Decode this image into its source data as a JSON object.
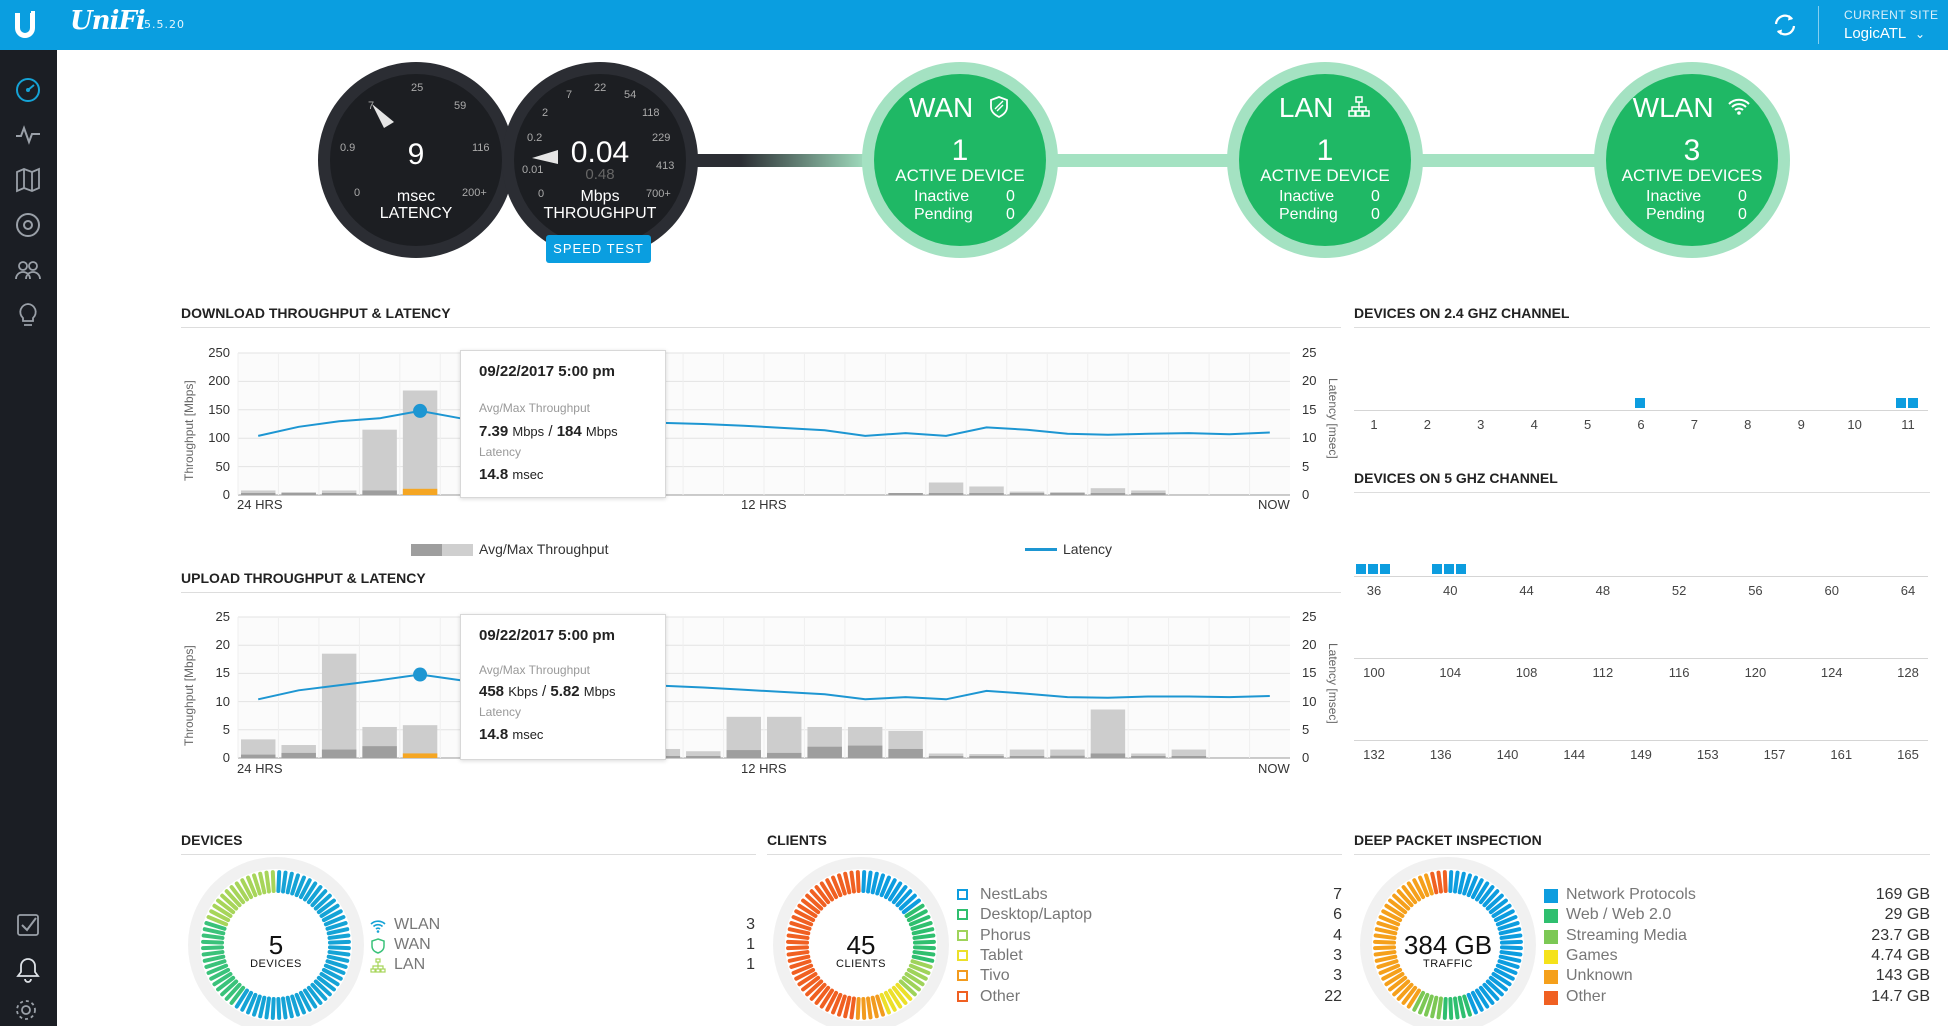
{
  "topbar": {
    "brand": "UniFi",
    "version": "5.5.20",
    "site_label": "CURRENT SITE",
    "site_name": "LogicATL",
    "colors": {
      "bar": "#0a9ee0",
      "sidebar": "#1b1e24"
    }
  },
  "sidebar": {
    "items": [
      {
        "name": "dashboard-icon"
      },
      {
        "name": "statistics-icon"
      },
      {
        "name": "map-icon"
      },
      {
        "name": "devices-icon"
      },
      {
        "name": "clients-icon"
      },
      {
        "name": "insights-icon"
      },
      {
        "name": "events-icon"
      },
      {
        "name": "alerts-icon"
      },
      {
        "name": "settings-icon"
      }
    ]
  },
  "latency_gauge": {
    "value": "9",
    "unit": "msec",
    "label": "LATENCY",
    "ticks": [
      "0",
      "0.9",
      "7",
      "25",
      "59",
      "116",
      "200+"
    ]
  },
  "throughput_gauge": {
    "value": "0.04",
    "secondary": "0.48",
    "unit": "Mbps",
    "label": "THROUGHPUT",
    "ticks": [
      "0",
      "0.01",
      "0.2",
      "2",
      "7",
      "22",
      "54",
      "118",
      "229",
      "413",
      "700+"
    ],
    "button": "SPEED TEST"
  },
  "hubs": [
    {
      "title": "WAN",
      "icon": "shield-icon",
      "count": "1",
      "active_label": "ACTIVE DEVICE",
      "inactive_label": "Inactive",
      "inactive": "0",
      "pending_label": "Pending",
      "pending": "0"
    },
    {
      "title": "LAN",
      "icon": "network-icon",
      "count": "1",
      "active_label": "ACTIVE DEVICE",
      "inactive_label": "Inactive",
      "inactive": "0",
      "pending_label": "Pending",
      "pending": "0"
    },
    {
      "title": "WLAN",
      "icon": "wifi-icon",
      "count": "3",
      "active_label": "ACTIVE DEVICES",
      "inactive_label": "Inactive",
      "inactive": "0",
      "pending_label": "Pending",
      "pending": "0"
    }
  ],
  "download": {
    "title": "DOWNLOAD THROUGHPUT & LATENCY",
    "ylabel_left": "Throughput [Mbps]",
    "ylabel_right": "Latency [msec]",
    "left_ticks": [
      "250",
      "200",
      "150",
      "100",
      "50",
      "0"
    ],
    "right_ticks": [
      "25",
      "20",
      "15",
      "10",
      "5",
      "0"
    ],
    "x_labels": [
      "24 HRS",
      "12 HRS",
      "NOW"
    ],
    "tooltip": {
      "date": "09/22/2017 5:00 pm",
      "tp_label": "Avg/Max Throughput",
      "tp_avg": "7.39",
      "tp_avg_unit": "Mbps",
      "tp_sep": "/",
      "tp_max": "184",
      "tp_max_unit": "Mbps",
      "lat_label": "Latency",
      "lat_val": "14.8",
      "lat_unit": "msec"
    }
  },
  "legend": {
    "throughput": "Avg/Max Throughput",
    "latency": "Latency"
  },
  "upload": {
    "title": "UPLOAD THROUGHPUT & LATENCY",
    "ylabel_left": "Throughput [Mbps]",
    "ylabel_right": "Latency [msec]",
    "left_ticks": [
      "25",
      "20",
      "15",
      "10",
      "5",
      "0"
    ],
    "right_ticks": [
      "25",
      "20",
      "15",
      "10",
      "5",
      "0"
    ],
    "x_labels": [
      "24 HRS",
      "12 HRS",
      "NOW"
    ],
    "tooltip": {
      "date": "09/22/2017 5:00 pm",
      "tp_label": "Avg/Max Throughput",
      "tp_avg": "458",
      "tp_avg_unit": "Kbps",
      "tp_sep": "/",
      "tp_max": "5.82",
      "tp_max_unit": "Mbps",
      "lat_label": "Latency",
      "lat_val": "14.8",
      "lat_unit": "msec"
    }
  },
  "chart_data": [
    {
      "type": "bar",
      "title": "DOWNLOAD THROUGHPUT & LATENCY",
      "ylabel": "Throughput [Mbps]",
      "y2label": "Latency [msec]",
      "ylim": [
        0,
        250
      ],
      "y2lim": [
        0,
        25
      ],
      "x_labels": [
        "24 HRS",
        "12 HRS",
        "NOW"
      ],
      "series": [
        {
          "name": "Avg/Max Throughput",
          "kind": "bar",
          "max": [
            8,
            5,
            8,
            115,
            184,
            null,
            null,
            null,
            null,
            null,
            null,
            null,
            null,
            null,
            null,
            null,
            3,
            22,
            15,
            6,
            5,
            12,
            8,
            0,
            0,
            0
          ],
          "avg": [
            2,
            1,
            2,
            8,
            7.39,
            null,
            null,
            null,
            null,
            null,
            null,
            null,
            null,
            null,
            null,
            null,
            1,
            2,
            2,
            1,
            1,
            2,
            1,
            0,
            0,
            0
          ]
        },
        {
          "name": "Latency",
          "kind": "line",
          "axis": "right",
          "values": [
            10.4,
            12,
            13,
            13.5,
            14.8,
            13.5,
            13.2,
            13,
            12.9,
            12.8,
            12.7,
            12.5,
            12.2,
            11.8,
            11.4,
            10.4,
            10.9,
            10.4,
            11.9,
            11.5,
            10.8,
            10.6,
            10.8,
            10.9,
            10.7,
            11
          ]
        }
      ]
    },
    {
      "type": "bar",
      "title": "UPLOAD THROUGHPUT & LATENCY",
      "ylabel": "Throughput [Mbps]",
      "y2label": "Latency [msec]",
      "ylim": [
        0,
        25
      ],
      "y2lim": [
        0,
        25
      ],
      "x_labels": [
        "24 HRS",
        "12 HRS",
        "NOW"
      ],
      "series": [
        {
          "name": "Avg/Max Throughput",
          "kind": "bar",
          "max": [
            3.3,
            2.3,
            18.5,
            5.5,
            5.82,
            null,
            null,
            null,
            null,
            1.5,
            1.6,
            1.2,
            7.3,
            7.3,
            5.5,
            5.5,
            4.8,
            0.8,
            0.7,
            1.5,
            1.5,
            8.6,
            0.8,
            1.5,
            0,
            0
          ],
          "avg": [
            0.6,
            0.9,
            1.5,
            2.1,
            0.458,
            null,
            null,
            null,
            null,
            0.3,
            0.3,
            0.2,
            1.4,
            0.9,
            2,
            2.2,
            1.6,
            0.2,
            0.2,
            0.3,
            0.4,
            0.8,
            0.2,
            0.3,
            0,
            0
          ]
        },
        {
          "name": "Latency",
          "kind": "line",
          "axis": "right",
          "values": [
            10.4,
            12,
            12.9,
            13.8,
            14.8,
            13.8,
            13.3,
            13.2,
            13.1,
            13,
            12.8,
            12.5,
            12.1,
            11.7,
            11.3,
            10.4,
            10.8,
            10.4,
            11.9,
            11.4,
            10.8,
            10.7,
            10.9,
            10.9,
            10.8,
            11
          ]
        }
      ]
    }
  ],
  "ch24": {
    "title": "DEVICES ON 2.4 GHZ CHANNEL",
    "channels": [
      "1",
      "2",
      "3",
      "4",
      "5",
      "6",
      "7",
      "8",
      "9",
      "10",
      "11"
    ],
    "device_counts": [
      0,
      0,
      0,
      0,
      0,
      1,
      0,
      0,
      0,
      0,
      2
    ]
  },
  "ch5": {
    "title": "DEVICES ON 5 GHZ CHANNEL",
    "rows": [
      {
        "channels": [
          "36",
          "40",
          "44",
          "48",
          "52",
          "56",
          "60",
          "64"
        ],
        "device_counts": [
          3,
          3,
          0,
          0,
          0,
          0,
          0,
          0
        ]
      },
      {
        "channels": [
          "100",
          "104",
          "108",
          "112",
          "116",
          "120",
          "124",
          "128"
        ],
        "device_counts": [
          0,
          0,
          0,
          0,
          0,
          0,
          0,
          0
        ]
      },
      {
        "channels": [
          "132",
          "136",
          "140",
          "144",
          "149",
          "153",
          "157",
          "161",
          "165"
        ],
        "device_counts": [
          0,
          0,
          0,
          0,
          0,
          0,
          0,
          0,
          0
        ]
      }
    ]
  },
  "devices": {
    "title": "DEVICES",
    "total": "5",
    "total_label": "DEVICES",
    "items": [
      {
        "label": "WLAN",
        "value": "3",
        "icon": "wifi-icon",
        "color": "#15a3d6"
      },
      {
        "label": "WAN",
        "value": "1",
        "icon": "shield-icon",
        "color": "#3ac27a"
      },
      {
        "label": "LAN",
        "value": "1",
        "icon": "network-icon",
        "color": "#a7d55a"
      }
    ]
  },
  "clients": {
    "title": "CLIENTS",
    "total": "45",
    "total_label": "CLIENTS",
    "items": [
      {
        "label": "NestLabs",
        "value": "7",
        "color": "#0d9ddf"
      },
      {
        "label": "Desktop/Laptop",
        "value": "6",
        "color": "#2fbf6f"
      },
      {
        "label": "Phorus",
        "value": "4",
        "color": "#9fd35a"
      },
      {
        "label": "Tablet",
        "value": "3",
        "color": "#ece02a"
      },
      {
        "label": "Tivo",
        "value": "3",
        "color": "#f29b1e"
      },
      {
        "label": "Other",
        "value": "22",
        "color": "#f06022"
      }
    ]
  },
  "dpi": {
    "title": "DEEP PACKET INSPECTION",
    "total": "384 GB",
    "total_label": "TRAFFIC",
    "items": [
      {
        "label": "Network Protocols",
        "value": "169 GB",
        "color": "#0d9ddf"
      },
      {
        "label": "Web / Web 2.0",
        "value": "29 GB",
        "color": "#2fbf6f"
      },
      {
        "label": "Streaming Media",
        "value": "23.7 GB",
        "color": "#7cc855"
      },
      {
        "label": "Games",
        "value": "4.74 GB",
        "color": "#f5e21b"
      },
      {
        "label": "Unknown",
        "value": "143 GB",
        "color": "#f5a01b"
      },
      {
        "label": "Other",
        "value": "14.7 GB",
        "color": "#f06022"
      }
    ]
  }
}
